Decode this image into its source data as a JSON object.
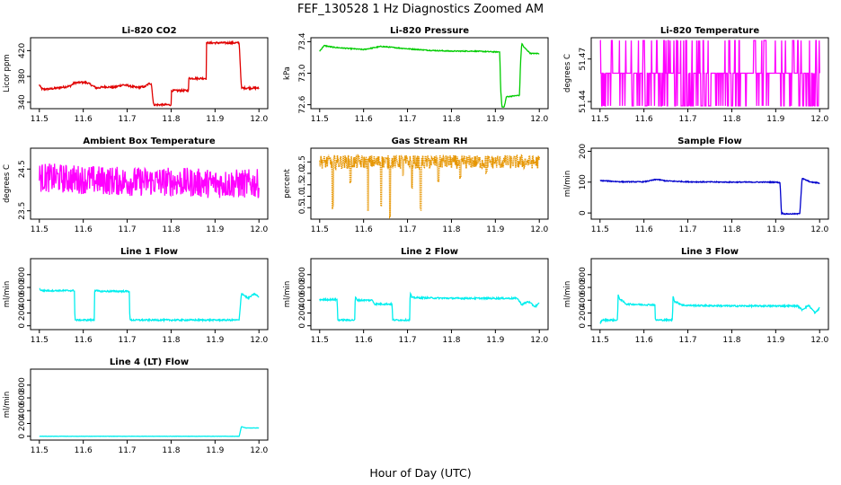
{
  "figure": {
    "title": "FEF_130528  1 Hz Diagnostics Zoomed AM",
    "xlabel": "Hour of Day (UTC)"
  },
  "chart_data": [
    {
      "type": "line",
      "title": "Li-820 CO2",
      "ylabel": "Licor ppm",
      "color": "#e00000",
      "xlim": [
        11.48,
        12.02
      ],
      "ylim": [
        330,
        440
      ],
      "xticks": [
        "11.5",
        "11.6",
        "11.7",
        "11.8",
        "11.9",
        "12.0"
      ],
      "yticks": [
        "340",
        "380",
        "420"
      ],
      "series": [
        {
          "x": [
            11.5,
            11.505,
            11.51,
            11.53,
            11.55,
            11.57,
            11.58,
            11.6,
            11.61,
            11.62,
            11.63,
            11.65,
            11.67,
            11.69,
            11.7,
            11.72,
            11.74,
            11.75,
            11.755,
            11.76,
            11.78,
            11.8,
            11.8,
            11.82,
            11.84,
            11.84,
            11.86,
            11.88,
            11.88,
            11.9,
            11.92,
            11.94,
            11.955,
            11.96,
            11.97,
            11.99,
            12.0
          ],
          "y": [
            367,
            361,
            360,
            361,
            363,
            365,
            370,
            371,
            370,
            366,
            362,
            364,
            363,
            367,
            366,
            363,
            364,
            369,
            369,
            336,
            336,
            336,
            358,
            358,
            358,
            377,
            377,
            377,
            432,
            432,
            432,
            432,
            432,
            362,
            362,
            362,
            362
          ],
          "noise": 1.5
        }
      ]
    },
    {
      "type": "line",
      "title": "Li-820 Pressure",
      "ylabel": "kPa",
      "color": "#00cc00",
      "xlim": [
        11.48,
        12.02
      ],
      "ylim": [
        72.55,
        73.45
      ],
      "xticks": [
        "11.5",
        "11.6",
        "11.7",
        "11.8",
        "11.9",
        "12.0"
      ],
      "yticks": [
        "72.6",
        "73.0",
        "73.4"
      ],
      "series": [
        {
          "x": [
            11.5,
            11.51,
            11.53,
            11.55,
            11.6,
            11.64,
            11.7,
            11.75,
            11.8,
            11.85,
            11.9,
            11.91,
            11.912,
            11.915,
            11.92,
            11.925,
            11.955,
            11.957,
            11.96,
            11.965,
            11.98,
            12.0
          ],
          "y": [
            73.28,
            73.35,
            73.33,
            73.32,
            73.3,
            73.34,
            73.31,
            73.29,
            73.28,
            73.28,
            73.27,
            73.27,
            72.8,
            72.57,
            72.57,
            72.7,
            72.72,
            73.1,
            73.38,
            73.33,
            73.25,
            73.25
          ],
          "noise": 0.006
        }
      ]
    },
    {
      "type": "line",
      "title": "Li-820 Temperature",
      "ylabel": "degrees C",
      "color": "#ff00ff",
      "xlim": [
        11.48,
        12.02
      ],
      "ylim": [
        51.435,
        51.485
      ],
      "xticks": [
        "11.5",
        "11.6",
        "11.7",
        "11.8",
        "11.9",
        "12.0"
      ],
      "yticks": [
        "51.44",
        "51.47"
      ],
      "levels": [
        51.437,
        51.46,
        51.483
      ],
      "series": [
        {
          "x": [
            11.5,
            12.0
          ],
          "y": [
            51.46,
            51.46
          ],
          "noise": 0
        }
      ]
    },
    {
      "type": "line",
      "title": "Ambient Box Temperature",
      "ylabel": "degrees C",
      "color": "#ff00ff",
      "xlim": [
        11.48,
        12.02
      ],
      "ylim": [
        23.3,
        25.0
      ],
      "xticks": [
        "11.5",
        "11.6",
        "11.7",
        "11.8",
        "11.9",
        "12.0"
      ],
      "yticks": [
        "23.5",
        "24.5"
      ],
      "series": [
        {
          "x": [
            11.5,
            11.6,
            11.7,
            11.8,
            11.9,
            12.0
          ],
          "y": [
            24.3,
            24.25,
            24.2,
            24.2,
            24.15,
            24.15
          ],
          "noise": 0.35
        }
      ]
    },
    {
      "type": "scatter",
      "title": "Gas Stream RH",
      "ylabel": "percent",
      "color": "#e69500",
      "xlim": [
        11.48,
        12.02
      ],
      "ylim": [
        0.0,
        3.1
      ],
      "xticks": [
        "11.5",
        "11.6",
        "11.7",
        "11.8",
        "11.9",
        "12.0"
      ],
      "yticks": [
        "0.5",
        "1.0",
        "1.5",
        "2.0",
        "2.5"
      ],
      "series": [
        {
          "x": [
            11.5,
            12.0
          ],
          "y": [
            2.5,
            2.5
          ],
          "noise": 0.3,
          "spikes": [
            [
              11.53,
              0.4
            ],
            [
              11.61,
              0.2
            ],
            [
              11.64,
              0.5
            ],
            [
              11.66,
              0.1
            ],
            [
              11.71,
              1.2
            ],
            [
              11.73,
              0.3
            ],
            [
              11.77,
              1.6
            ],
            [
              11.82,
              1.7
            ],
            [
              11.88,
              1.9
            ],
            [
              11.57,
              1.5
            ],
            [
              11.69,
              1.8
            ]
          ]
        }
      ]
    },
    {
      "type": "line",
      "title": "Sample Flow",
      "ylabel": "ml/min",
      "color": "#0000cc",
      "xlim": [
        11.48,
        12.02
      ],
      "ylim": [
        -20,
        210
      ],
      "xticks": [
        "11.5",
        "11.6",
        "11.7",
        "11.8",
        "11.9",
        "12.0"
      ],
      "yticks": [
        "0",
        "100",
        "200"
      ],
      "series": [
        {
          "x": [
            11.5,
            11.55,
            11.6,
            11.63,
            11.65,
            11.7,
            11.8,
            11.9,
            11.91,
            11.913,
            11.92,
            11.95,
            11.955,
            11.96,
            11.98,
            12.0
          ],
          "y": [
            105,
            101,
            101,
            109,
            104,
            101,
            100,
            100,
            98,
            0,
            -3,
            -3,
            0,
            112,
            100,
            97
          ],
          "noise": 1.5
        }
      ]
    },
    {
      "type": "line",
      "title": "Line 1 Flow",
      "ylabel": "ml/min",
      "color": "#00eeee",
      "xlim": [
        11.48,
        12.02
      ],
      "ylim": [
        -60,
        1050
      ],
      "xticks": [
        "11.5",
        "11.6",
        "11.7",
        "11.8",
        "11.9",
        "12.0"
      ],
      "yticks": [
        "0",
        "200",
        "400",
        "600",
        "800"
      ],
      "series": [
        {
          "x": [
            11.5,
            11.505,
            11.58,
            11.581,
            11.625,
            11.626,
            11.635,
            11.705,
            11.706,
            11.95,
            11.955,
            11.96,
            11.975,
            11.99,
            12.0
          ],
          "y": [
            580,
            550,
            550,
            90,
            90,
            560,
            540,
            540,
            90,
            90,
            90,
            510,
            430,
            500,
            450
          ],
          "noise": 12
        }
      ]
    },
    {
      "type": "line",
      "title": "Line 2 Flow",
      "ylabel": "ml/min",
      "color": "#00eeee",
      "xlim": [
        11.48,
        12.02
      ],
      "ylim": [
        -60,
        1050
      ],
      "xticks": [
        "11.5",
        "11.6",
        "11.7",
        "11.8",
        "11.9",
        "12.0"
      ],
      "yticks": [
        "0",
        "200",
        "400",
        "600",
        "800"
      ],
      "series": [
        {
          "x": [
            11.5,
            11.54,
            11.541,
            11.58,
            11.581,
            11.585,
            11.62,
            11.625,
            11.665,
            11.666,
            11.705,
            11.706,
            11.71,
            11.8,
            11.95,
            11.96,
            11.975,
            11.99,
            12.0
          ],
          "y": [
            410,
            410,
            90,
            90,
            460,
            400,
            400,
            340,
            340,
            90,
            90,
            520,
            440,
            430,
            430,
            330,
            380,
            300,
            350
          ],
          "noise": 12
        }
      ]
    },
    {
      "type": "line",
      "title": "Line 3 Flow",
      "ylabel": "ml/min",
      "color": "#00eeee",
      "xlim": [
        11.48,
        12.02
      ],
      "ylim": [
        -60,
        1050
      ],
      "xticks": [
        "11.5",
        "11.6",
        "11.7",
        "11.8",
        "11.9",
        "12.0"
      ],
      "yticks": [
        "0",
        "200",
        "400",
        "600",
        "800"
      ],
      "series": [
        {
          "x": [
            11.5,
            11.505,
            11.54,
            11.541,
            11.545,
            11.56,
            11.6,
            11.625,
            11.626,
            11.665,
            11.666,
            11.67,
            11.69,
            11.8,
            11.95,
            11.96,
            11.975,
            11.99,
            12.0
          ],
          "y": [
            40,
            90,
            90,
            480,
            420,
            340,
            330,
            330,
            90,
            90,
            470,
            380,
            320,
            310,
            310,
            250,
            320,
            200,
            280
          ],
          "noise": 12
        }
      ]
    },
    {
      "type": "line",
      "title": "Line 4 (LT) Flow",
      "ylabel": "ml/min",
      "color": "#00eeee",
      "xlim": [
        11.48,
        12.02
      ],
      "ylim": [
        -60,
        1050
      ],
      "xticks": [
        "11.5",
        "11.6",
        "11.7",
        "11.8",
        "11.9",
        "12.0"
      ],
      "yticks": [
        "0",
        "200",
        "400",
        "600",
        "800"
      ],
      "series": [
        {
          "x": [
            11.5,
            11.955,
            11.96,
            11.97,
            12.0
          ],
          "y": [
            0,
            0,
            150,
            130,
            130
          ],
          "noise": 2
        }
      ]
    }
  ]
}
